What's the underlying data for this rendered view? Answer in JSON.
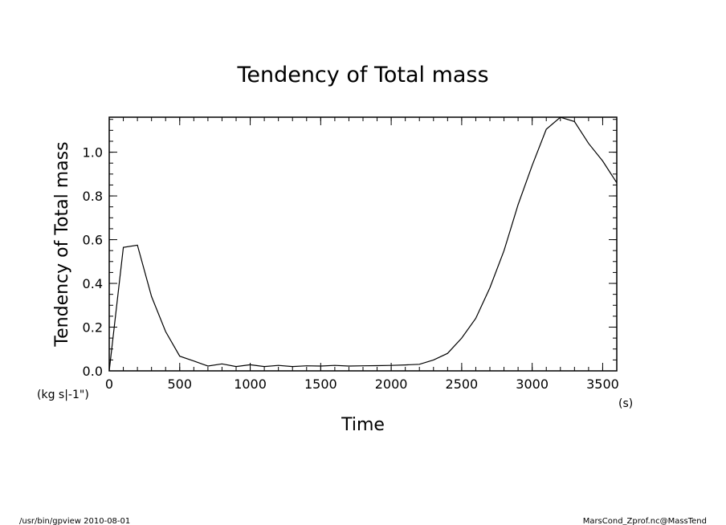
{
  "chart_data": {
    "type": "line",
    "title": "Tendency of Total mass",
    "xlabel": "Time",
    "xunit": "(s)",
    "ylabel": "Tendency of Total mass",
    "yunit": "(kg s|-1\")",
    "xlim": [
      0,
      3600
    ],
    "ylim": [
      0,
      1.16
    ],
    "xticks": [
      0,
      500,
      1000,
      1500,
      2000,
      2500,
      3000,
      3500
    ],
    "xtick_labels": [
      "0",
      "500",
      "1000",
      "1500",
      "2000",
      "2500",
      "3000",
      "3500"
    ],
    "yticks": [
      0.0,
      0.2,
      0.4,
      0.6,
      0.8,
      1.0
    ],
    "ytick_labels": [
      "0.0",
      "0.2",
      "0.4",
      "0.6",
      "0.8",
      "1.0"
    ],
    "grid": false,
    "series": [
      {
        "x": [
          0,
          100,
          200,
          300,
          400,
          500,
          600,
          700,
          800,
          900,
          1000,
          1100,
          1200,
          1300,
          1400,
          1500,
          1600,
          1700,
          1800,
          1900,
          2000,
          2100,
          2200,
          2300,
          2400,
          2500,
          2600,
          2700,
          2800,
          2900,
          3000,
          3100,
          3200,
          3300,
          3400,
          3500,
          3600
        ],
        "y": [
          0.0,
          0.565,
          0.575,
          0.34,
          0.18,
          0.067,
          0.045,
          0.022,
          0.032,
          0.02,
          0.028,
          0.02,
          0.025,
          0.02,
          0.023,
          0.022,
          0.025,
          0.022,
          0.023,
          0.024,
          0.025,
          0.027,
          0.03,
          0.05,
          0.08,
          0.15,
          0.24,
          0.38,
          0.55,
          0.76,
          0.94,
          1.105,
          1.16,
          1.14,
          1.04,
          0.96,
          0.86
        ]
      }
    ]
  },
  "footer": {
    "left": "/usr/bin/gpview  2010-08-01",
    "right": "MarsCond_Zprof.nc@MassTend"
  }
}
